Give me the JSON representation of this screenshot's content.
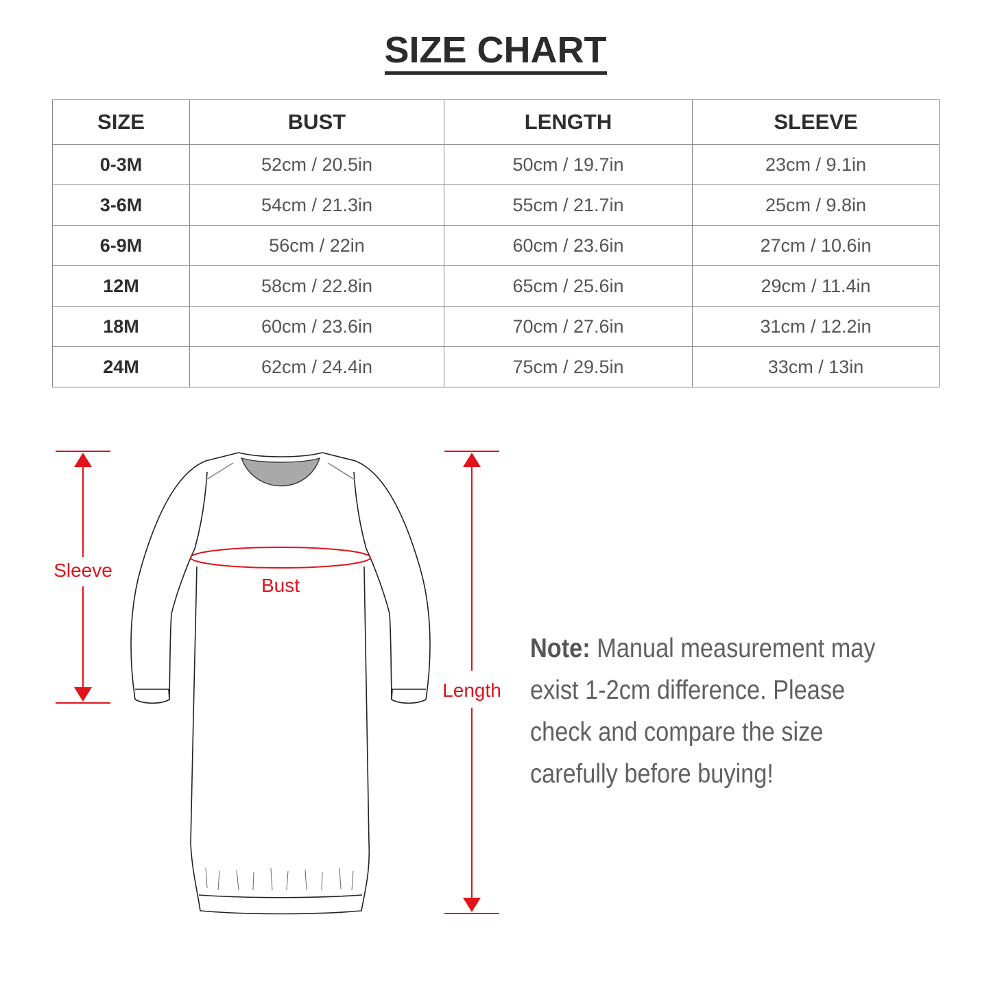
{
  "title": "SIZE CHART",
  "table": {
    "headers": [
      "SIZE",
      "BUST",
      "LENGTH",
      "SLEEVE"
    ],
    "rows": [
      [
        "0-3M",
        "52cm / 20.5in",
        "50cm / 19.7in",
        "23cm / 9.1in"
      ],
      [
        "3-6M",
        "54cm / 21.3in",
        "55cm / 21.7in",
        "25cm / 9.8in"
      ],
      [
        "6-9M",
        "56cm / 22in",
        "60cm / 23.6in",
        "27cm / 10.6in"
      ],
      [
        "12M",
        "58cm / 22.8in",
        "65cm / 25.6in",
        "29cm / 11.4in"
      ],
      [
        "18M",
        "60cm / 23.6in",
        "70cm / 27.6in",
        "31cm / 12.2in"
      ],
      [
        "24M",
        "62cm / 24.4in",
        "75cm / 29.5in",
        "33cm / 13in"
      ]
    ]
  },
  "diagram": {
    "sleeve_label": "Sleeve",
    "bust_label": "Bust",
    "length_label": "Length",
    "measure_color": "#e0141b"
  },
  "note": {
    "label": "Note:",
    "lines": [
      "Manual measurement may",
      "exist 1-2cm difference. Please",
      "check and compare the size",
      "carefully before buying!"
    ]
  }
}
